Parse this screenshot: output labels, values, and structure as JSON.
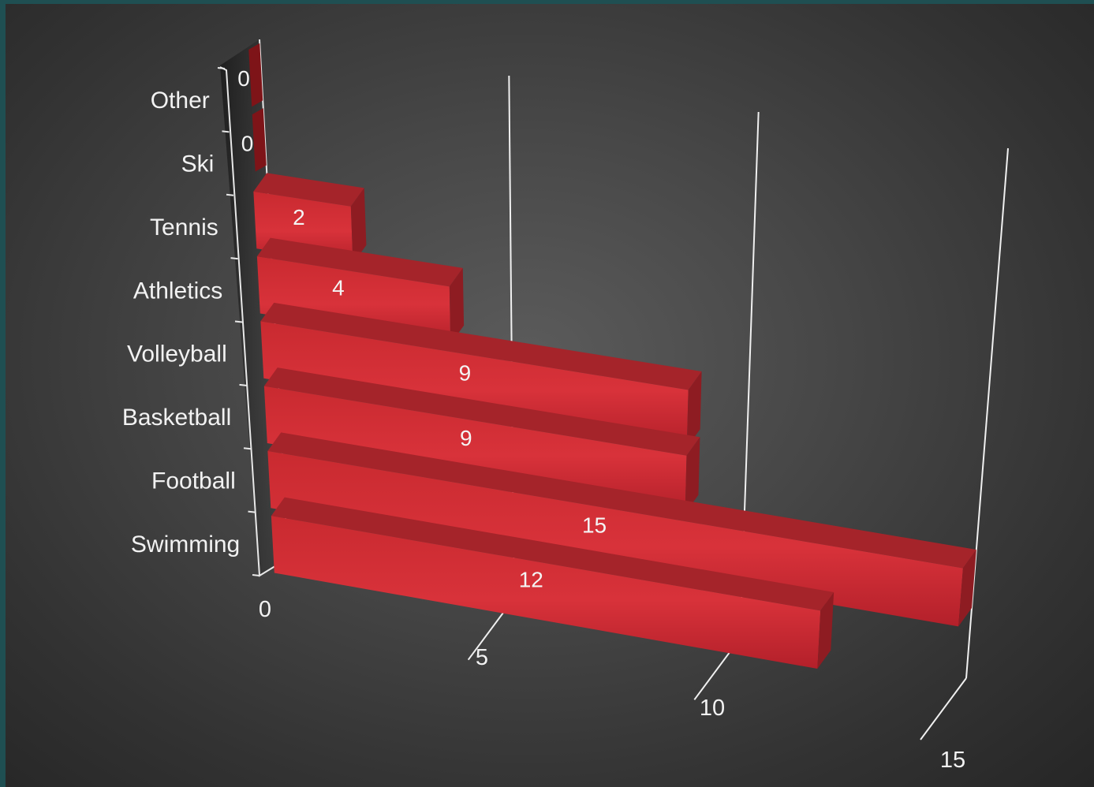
{
  "chart_data": {
    "type": "bar",
    "orientation": "horizontal",
    "style": "3d",
    "categories": [
      "Swimming",
      "Football",
      "Basketball",
      "Volleyball",
      "Athletics",
      "Tennis",
      "Ski",
      "Other"
    ],
    "values": [
      12,
      15,
      9,
      9,
      4,
      2,
      0,
      0
    ],
    "xlim": [
      0,
      15
    ],
    "xticks": [
      "0",
      "5",
      "10",
      "15"
    ],
    "data_labels": [
      "12",
      "15",
      "9",
      "9",
      "4",
      "2",
      "0",
      "0"
    ],
    "grid": true,
    "legend": "none",
    "bar_color": "#c0262b",
    "background_color": "#4a4a4a"
  }
}
